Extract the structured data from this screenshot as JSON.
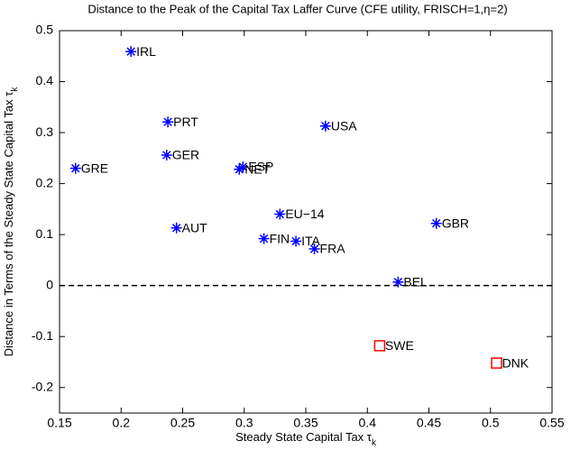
{
  "chart_data": {
    "type": "scatter",
    "title": "Distance to the Peak of the Capital Tax Laffer Curve (CFE utility, FRISCH=1,η=2)",
    "xlabel": "Steady State Capital Tax τ",
    "xlabel_subscript": "k",
    "ylabel": "Distance in Terms of the Steady State Capital Tax τ",
    "ylabel_subscript": "k",
    "xlim": [
      0.15,
      0.55
    ],
    "xticks": [
      0.15,
      0.2,
      0.25,
      0.3,
      0.35,
      0.4,
      0.45,
      0.5,
      0.55
    ],
    "ylim": [
      -0.25,
      0.5
    ],
    "yticks": [
      -0.2,
      -0.1,
      0,
      0.1,
      0.2,
      0.3,
      0.4,
      0.5
    ],
    "reference_line": 0,
    "series": [
      {
        "marker": "star",
        "color": "#0000ff",
        "labels": [
          "IRL",
          "PRT",
          "GER",
          "GRE",
          "ESP",
          "NET",
          "USA",
          "EU−14",
          "AUT",
          "FIN",
          "ITA",
          "FRA",
          "GBR",
          "BEL"
        ],
        "x": [
          0.208,
          0.238,
          0.237,
          0.163,
          0.299,
          0.296,
          0.366,
          0.329,
          0.245,
          0.316,
          0.342,
          0.357,
          0.456,
          0.425
        ],
        "values": [
          0.459,
          0.321,
          0.256,
          0.23,
          0.233,
          0.228,
          0.313,
          0.14,
          0.113,
          0.092,
          0.087,
          0.072,
          0.122,
          0.007
        ]
      },
      {
        "marker": "square",
        "color": "#ff0000",
        "labels": [
          "SWE",
          "DNK"
        ],
        "x": [
          0.41,
          0.505
        ],
        "values": [
          -0.118,
          -0.152
        ]
      }
    ]
  }
}
